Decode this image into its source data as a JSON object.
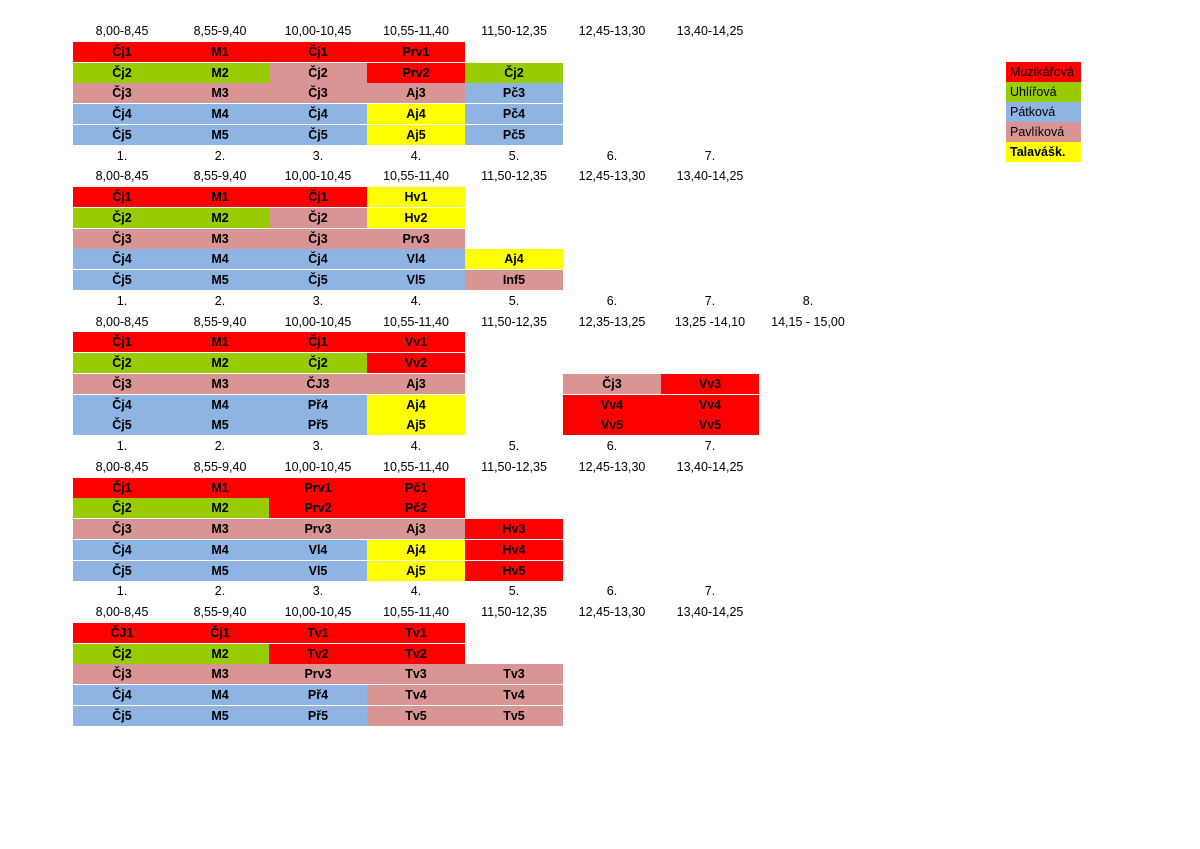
{
  "colors": {
    "R": "#ff0000",
    "G": "#99cc00",
    "B": "#8eb4e3",
    "P": "#d99594",
    "Y": "#ffff00",
    "W": "#ffffff"
  },
  "legend": [
    {
      "name": "Muzikářová",
      "color": "R",
      "bold": false
    },
    {
      "name": "Uhlířová",
      "color": "G",
      "bold": false
    },
    {
      "name": "Pátková",
      "color": "B",
      "bold": false
    },
    {
      "name": "Pavlíková",
      "color": "P",
      "bold": false
    },
    {
      "name": "Talavášk.",
      "color": "Y",
      "bold": true
    }
  ],
  "days": [
    {
      "numbers": [],
      "times": [
        "8,00-8,45",
        "8,55-9,40",
        "10,00-10,45",
        "10,55-11,40",
        "11,50-12,35",
        "12,45-13,30",
        "13,40-14,25"
      ],
      "rows": [
        [
          [
            "Čj1",
            "R"
          ],
          [
            "M1",
            "R"
          ],
          [
            "Čj1",
            "R"
          ],
          [
            "Prv1",
            "R"
          ]
        ],
        [
          [
            "Čj2",
            "G"
          ],
          [
            "M2",
            "G"
          ],
          [
            "Čj2",
            "P"
          ],
          [
            "Prv2",
            "R"
          ],
          [
            "Čj2",
            "G"
          ]
        ],
        [
          [
            "Čj3",
            "P"
          ],
          [
            "M3",
            "P"
          ],
          [
            "Čj3",
            "P"
          ],
          [
            "Aj3",
            "P"
          ],
          [
            "Pč3",
            "B"
          ]
        ],
        [
          [
            "Čj4",
            "B"
          ],
          [
            "M4",
            "B"
          ],
          [
            "Čj4",
            "B"
          ],
          [
            "Aj4",
            "Y"
          ],
          [
            "Pč4",
            "B"
          ]
        ],
        [
          [
            "Čj5",
            "B"
          ],
          [
            "M5",
            "B"
          ],
          [
            "Čj5",
            "B"
          ],
          [
            "Aj5",
            "Y"
          ],
          [
            "Pč5",
            "B"
          ]
        ]
      ]
    },
    {
      "numbers": [
        "1.",
        "2.",
        "3.",
        "4.",
        "5.",
        "6.",
        "7."
      ],
      "times": [
        "8,00-8,45",
        "8,55-9,40",
        "10,00-10,45",
        "10,55-11,40",
        "11,50-12,35",
        "12,45-13,30",
        "13,40-14,25"
      ],
      "rows": [
        [
          [
            "Čj1",
            "R"
          ],
          [
            "M1",
            "R"
          ],
          [
            "Čj1",
            "R"
          ],
          [
            "Hv1",
            "Y"
          ]
        ],
        [
          [
            "Čj2",
            "G"
          ],
          [
            "M2",
            "G"
          ],
          [
            "Čj2",
            "P"
          ],
          [
            "Hv2",
            "Y"
          ]
        ],
        [
          [
            "Čj3",
            "P"
          ],
          [
            "M3",
            "P"
          ],
          [
            "Čj3",
            "P"
          ],
          [
            "Prv3",
            "P"
          ]
        ],
        [
          [
            "Čj4",
            "B"
          ],
          [
            "M4",
            "B"
          ],
          [
            "Čj4",
            "B"
          ],
          [
            "Vl4",
            "B"
          ],
          [
            "Aj4",
            "Y"
          ]
        ],
        [
          [
            "Čj5",
            "B"
          ],
          [
            "M5",
            "B"
          ],
          [
            "Čj5",
            "B"
          ],
          [
            "Vl5",
            "B"
          ],
          [
            "Inf5",
            "P"
          ]
        ]
      ]
    },
    {
      "numbers": [
        "1.",
        "2.",
        "3.",
        "4.",
        "5.",
        "6.",
        "7.",
        "8."
      ],
      "times": [
        "8,00-8,45",
        "8,55-9,40",
        "10,00-10,45",
        "10,55-11,40",
        "11,50-12,35",
        "12,35-13,25",
        "13,25 -14,10",
        "14,15 - 15,00"
      ],
      "rows": [
        [
          [
            "Čj1",
            "R"
          ],
          [
            "M1",
            "R"
          ],
          [
            "Čj1",
            "R"
          ],
          [
            "Vv1",
            "R"
          ]
        ],
        [
          [
            "Čj2",
            "G"
          ],
          [
            "M2",
            "G"
          ],
          [
            "Čj2",
            "G"
          ],
          [
            "Vv2",
            "R"
          ]
        ],
        [
          [
            "Čj3",
            "P"
          ],
          [
            "M3",
            "P"
          ],
          [
            "ČJ3",
            "P"
          ],
          [
            "Aj3",
            "P"
          ],
          [
            "",
            ""
          ],
          [
            "Čj3",
            "P"
          ],
          [
            "Vv3",
            "R"
          ]
        ],
        [
          [
            "Čj4",
            "B"
          ],
          [
            "M4",
            "B"
          ],
          [
            "Př4",
            "B"
          ],
          [
            "Aj4",
            "Y"
          ],
          [
            "",
            ""
          ],
          [
            "Vv4",
            "R"
          ],
          [
            "Vv4",
            "R"
          ]
        ],
        [
          [
            "Čj5",
            "B"
          ],
          [
            "M5",
            "B"
          ],
          [
            "Př5",
            "B"
          ],
          [
            "Aj5",
            "Y"
          ],
          [
            "",
            ""
          ],
          [
            "Vv5",
            "R"
          ],
          [
            "Vv5",
            "R"
          ]
        ]
      ]
    },
    {
      "numbers": [
        "1.",
        "2.",
        "3.",
        "4.",
        "5.",
        "6.",
        "7."
      ],
      "times": [
        "8,00-8,45",
        "8,55-9,40",
        "10,00-10,45",
        "10,55-11,40",
        "11,50-12,35",
        "12,45-13,30",
        "13,40-14,25"
      ],
      "rows": [
        [
          [
            "Čj1",
            "R"
          ],
          [
            "M1",
            "R"
          ],
          [
            "Prv1",
            "R"
          ],
          [
            "Pč1",
            "R"
          ]
        ],
        [
          [
            "Čj2",
            "G"
          ],
          [
            "M2",
            "G"
          ],
          [
            "Prv2",
            "R"
          ],
          [
            "Pč2",
            "R"
          ]
        ],
        [
          [
            "Čj3",
            "P"
          ],
          [
            "M3",
            "P"
          ],
          [
            "Prv3",
            "P"
          ],
          [
            "Aj3",
            "P"
          ],
          [
            "Hv3",
            "R"
          ]
        ],
        [
          [
            "Čj4",
            "B"
          ],
          [
            "M4",
            "B"
          ],
          [
            "Vl4",
            "B"
          ],
          [
            "Aj4",
            "Y"
          ],
          [
            "Hv4",
            "R"
          ]
        ],
        [
          [
            "Čj5",
            "B"
          ],
          [
            "M5",
            "B"
          ],
          [
            "Vl5",
            "B"
          ],
          [
            "Aj5",
            "Y"
          ],
          [
            "Hv5",
            "R"
          ]
        ]
      ]
    },
    {
      "numbers": [
        "1.",
        "2.",
        "3.",
        "4.",
        "5.",
        "6.",
        "7."
      ],
      "times": [
        "8,00-8,45",
        "8,55-9,40",
        "10,00-10,45",
        "10,55-11,40",
        "11,50-12,35",
        "12,45-13,30",
        "13,40-14,25"
      ],
      "rows": [
        [
          [
            "ČJ1",
            "R"
          ],
          [
            "Čj1",
            "R"
          ],
          [
            "Tv1",
            "R"
          ],
          [
            "Tv1",
            "R"
          ]
        ],
        [
          [
            "Čj2",
            "G"
          ],
          [
            "M2",
            "G"
          ],
          [
            "Tv2",
            "R"
          ],
          [
            "Tv2",
            "R"
          ]
        ],
        [
          [
            "Čj3",
            "P"
          ],
          [
            "M3",
            "P"
          ],
          [
            "Prv3",
            "P"
          ],
          [
            "Tv3",
            "P"
          ],
          [
            "Tv3",
            "P"
          ]
        ],
        [
          [
            "Čj4",
            "B"
          ],
          [
            "M4",
            "B"
          ],
          [
            "Př4",
            "B"
          ],
          [
            "Tv4",
            "P"
          ],
          [
            "Tv4",
            "P"
          ]
        ],
        [
          [
            "Čj5",
            "B"
          ],
          [
            "M5",
            "B"
          ],
          [
            "Př5",
            "B"
          ],
          [
            "Tv5",
            "P"
          ],
          [
            "Tv5",
            "P"
          ]
        ]
      ]
    }
  ]
}
